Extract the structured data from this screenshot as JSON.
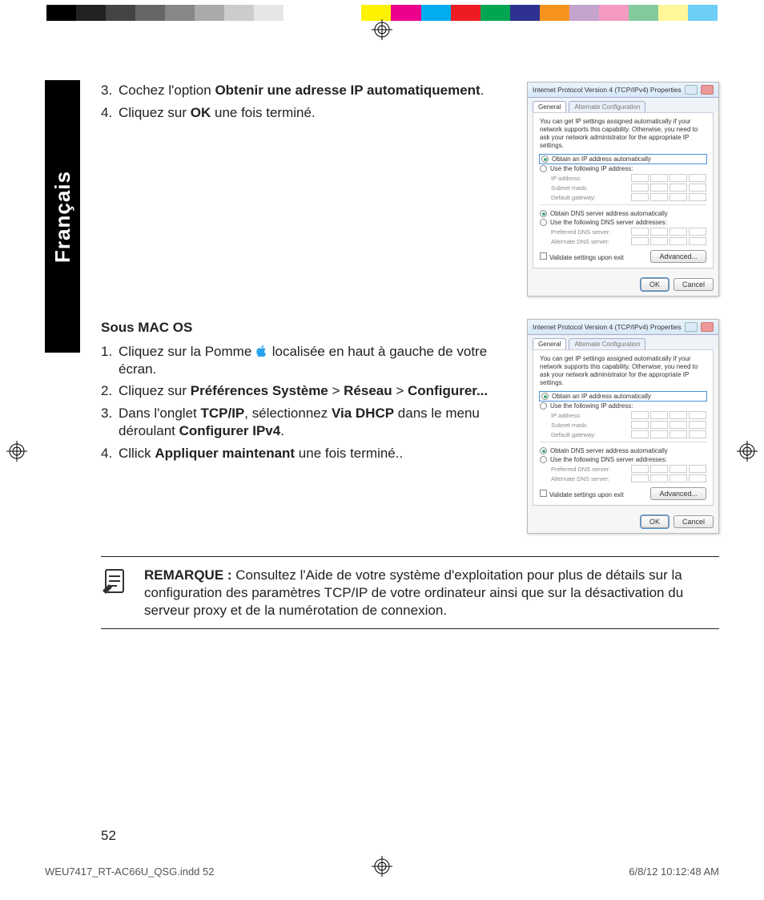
{
  "colorbar": {
    "left": [
      "#000000",
      "#222222",
      "#444444",
      "#666666",
      "#888888",
      "#aaaaaa",
      "#cccccc",
      "#e6e6e6",
      "#ffffff"
    ],
    "right": [
      "#fff200",
      "#ec008c",
      "#00aeef",
      "#ed1c24",
      "#00a651",
      "#2e3192",
      "#f7941d",
      "#c4a4cd",
      "#f49ac1",
      "#82ca9c",
      "#fff799",
      "#6dcff6"
    ]
  },
  "language_tab": "Français",
  "section1": {
    "items": [
      {
        "num": "3.",
        "pre": "Cochez l'option ",
        "bold": "Obtenir une adresse IP automatiquement",
        "post": "."
      },
      {
        "num": "4.",
        "pre": "Cliquez sur ",
        "bold": "OK",
        "post": " une fois terminé."
      }
    ]
  },
  "mac_heading": "Sous MAC OS",
  "section2": {
    "items": [
      {
        "num": "1.",
        "html": "Cliquez sur la Pomme __APPLE__ localisée en haut à gauche de votre écran."
      },
      {
        "num": "2.",
        "html": "Cliquez sur <b>Préférences Système</b> > <b>Réseau</b> > <b>Configurer...</b>"
      },
      {
        "num": "3.",
        "html": "Dans l'onglet <b>TCP/IP</b>, sélectionnez <b>Via DHCP</b> dans le menu déroulant <b>Configurer IPv4</b>."
      },
      {
        "num": "4.",
        "html": "Cllick <b>Appliquer maintenant</b> une fois terminé.."
      }
    ]
  },
  "dialog": {
    "title": "Internet Protocol Version 4 (TCP/IPv4) Properties",
    "tabs": [
      "General",
      "Alternate Configuration"
    ],
    "desc": "You can get IP settings assigned automatically if your network supports this capability. Otherwise, you need to ask your network administrator for the appropriate IP settings.",
    "opt_auto_ip": "Obtain an IP address automatically",
    "opt_manual_ip": "Use the following IP address:",
    "lbl_ip": "IP address:",
    "lbl_mask": "Subnet mask:",
    "lbl_gw": "Default gateway:",
    "opt_auto_dns": "Obtain DNS server address automatically",
    "opt_manual_dns": "Use the following DNS server addresses:",
    "lbl_pdns": "Preferred DNS server:",
    "lbl_adns": "Alternate DNS server:",
    "validate": "Validate settings upon exit",
    "advanced": "Advanced...",
    "ok": "OK",
    "cancel": "Cancel"
  },
  "note": {
    "label": "REMARQUE : ",
    "text": "Consultez l'Aide de votre système d'exploitation pour plus de détails sur la configuration des paramètres TCP/IP de votre ordinateur ainsi que sur la désactivation du serveur proxy et de la numérotation de connexion."
  },
  "page_number": "52",
  "footer": {
    "file": "WEU7417_RT-AC66U_QSG.indd   52",
    "date": "6/8/12   10:12:48 AM"
  }
}
